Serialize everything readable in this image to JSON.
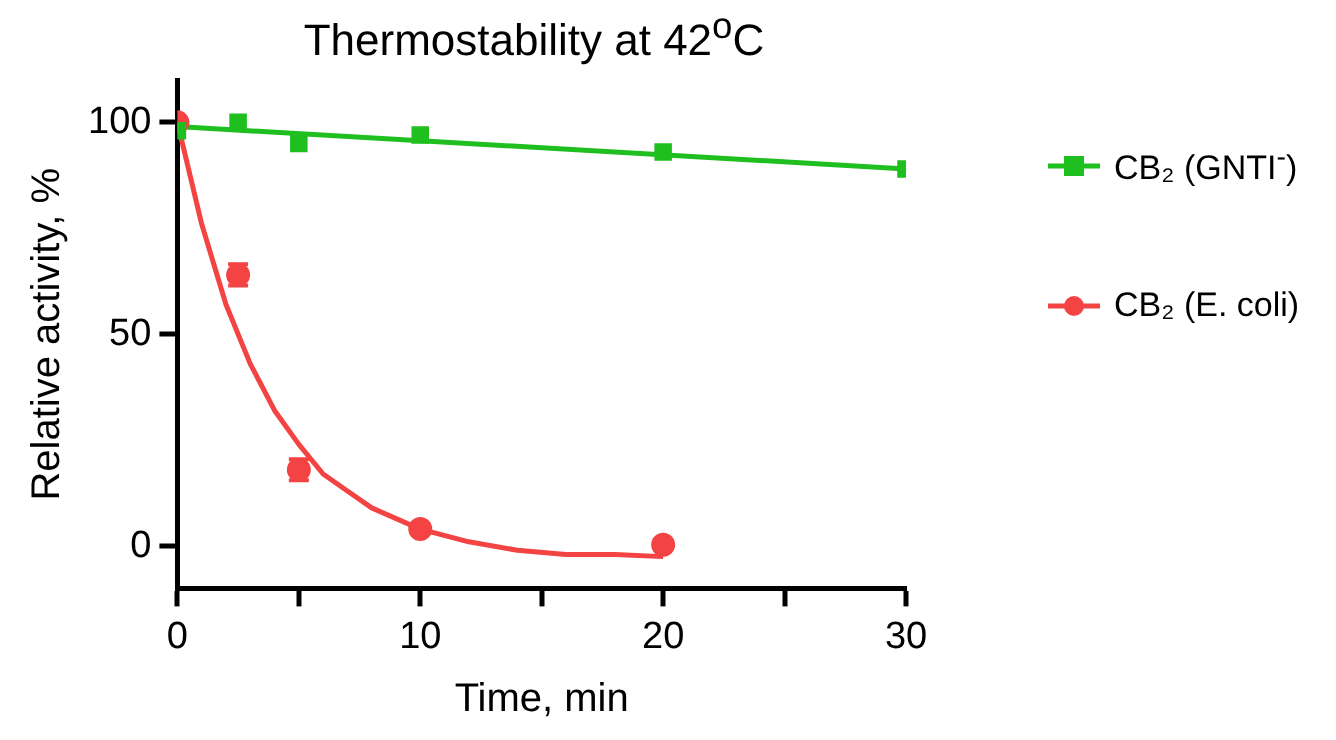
{
  "chart_data": {
    "type": "scatter",
    "title": "Thermostability at 42$^{o}$C",
    "xlabel": "Time, min",
    "ylabel": "Relative activity, %",
    "xlim": [
      0,
      30
    ],
    "xticks": [
      0,
      {
        "value": 5,
        "label": null
      },
      10,
      {
        "value": 15,
        "label": null
      },
      20,
      {
        "value": 25,
        "label": null
      },
      30
    ],
    "ylim": [
      -10,
      110
    ],
    "yticks": [
      0,
      50,
      100
    ],
    "grid": false,
    "legend": "right",
    "line_style": "solid",
    "series": [
      {
        "name": "CB₂ (GNTI$^{-}$)",
        "marker": "square",
        "color": "#1fbf1f",
        "x": [
          0,
          2.5,
          5,
          10,
          20,
          30
        ],
        "values": [
          98,
          100,
          95,
          97,
          93,
          89
        ]
      },
      {
        "name": "CB₂ (E. coli)",
        "marker": "circle",
        "color": "#f44343",
        "x": [
          0,
          2.5,
          5,
          10,
          20
        ],
        "values": [
          100,
          64,
          18,
          4,
          0.3
        ],
        "errors": [
          null,
          2.5,
          2.5,
          null,
          null
        ]
      },
      {
        "type": "line",
        "marker": "none",
        "color": "#1fbf1f",
        "x": [
          0,
          30
        ],
        "values": [
          99,
          89
        ]
      },
      {
        "type": "line",
        "marker": "none",
        "color": "#f44343",
        "x": [
          0,
          1,
          2,
          3,
          4,
          5,
          6,
          7,
          8,
          10,
          12,
          14,
          16,
          18,
          20
        ],
        "values": [
          100,
          76,
          57,
          43,
          32,
          24,
          17,
          13,
          9,
          4,
          1,
          -1,
          -2,
          -2,
          -2.5
        ]
      }
    ]
  }
}
